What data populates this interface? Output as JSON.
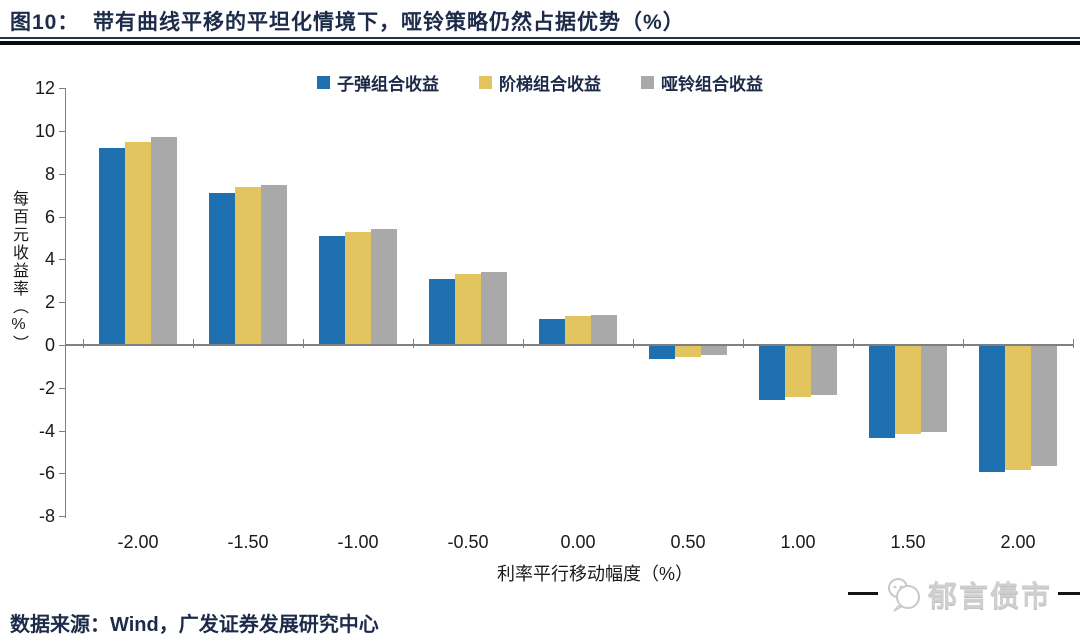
{
  "header": {
    "title": "图10：  带有曲线平移的平坦化情境下，哑铃策略仍然占据优势（%）"
  },
  "chart_data": {
    "type": "bar",
    "title": "带有曲线平移的平坦化情境下，哑铃策略仍然占据优势（%）",
    "categories": [
      "-2.00",
      "-1.50",
      "-1.00",
      "-0.50",
      "0.00",
      "0.50",
      "1.00",
      "1.50",
      "2.00"
    ],
    "series": [
      {
        "name": "子弹组合收益",
        "color": "#1f70b1",
        "values": [
          9.2,
          7.1,
          5.1,
          3.1,
          1.2,
          -0.6,
          -2.5,
          -4.3,
          -5.9
        ]
      },
      {
        "name": "阶梯组合收益",
        "color": "#e3c55f",
        "values": [
          9.5,
          7.4,
          5.3,
          3.3,
          1.35,
          -0.5,
          -2.4,
          -4.1,
          -5.8
        ]
      },
      {
        "name": "哑铃组合收益",
        "color": "#a9a9a9",
        "values": [
          9.7,
          7.5,
          5.4,
          3.4,
          1.4,
          -0.4,
          -2.3,
          -4.0,
          -5.6
        ]
      }
    ],
    "xlabel": "利率平行移动幅度（%）",
    "ylabel": "每百元收益率（%）",
    "ylim": [
      -8,
      12
    ],
    "ytick_step": 2,
    "yticks": [
      12,
      10,
      8,
      6,
      4,
      2,
      0,
      -2,
      -4,
      -6,
      -8
    ],
    "legend_position": "top",
    "grid": false
  },
  "footer": {
    "source": "数据来源：Wind，广发证券发展研究中心"
  },
  "watermark": {
    "logo_text": "郁言债市",
    "icon": "chat-bubbles-icon"
  },
  "colors": {
    "title_text": "#1c2b4a",
    "axis": "#7f7f7f",
    "tick_text": "#1a1a1a",
    "rule": "#0a0a0a",
    "watermark_text": "#cfcfcf"
  }
}
